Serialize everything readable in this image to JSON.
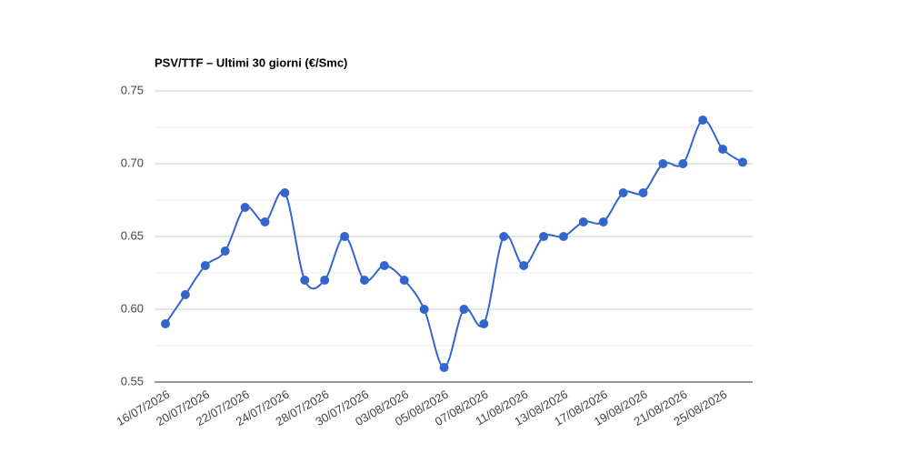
{
  "chart_data": {
    "type": "line",
    "title": "PSV/TTF – Ultimi 30 giorni (€/Smc)",
    "categories": [
      "16/07/2026",
      null,
      "20/07/2026",
      null,
      "22/07/2026",
      null,
      "24/07/2026",
      null,
      "28/07/2026",
      null,
      "30/07/2026",
      null,
      "03/08/2026",
      null,
      "05/08/2026",
      null,
      "07/08/2026",
      null,
      "11/08/2026",
      null,
      "13/08/2026",
      null,
      "17/08/2026",
      null,
      "19/08/2026",
      null,
      "21/08/2026",
      null,
      "25/08/2026",
      null
    ],
    "values": [
      0.59,
      0.61,
      0.63,
      0.64,
      0.67,
      0.66,
      0.68,
      0.62,
      0.62,
      0.65,
      0.62,
      0.63,
      0.62,
      0.6,
      0.56,
      0.6,
      0.59,
      0.65,
      0.63,
      0.65,
      0.65,
      0.66,
      0.66,
      0.68,
      0.68,
      0.7,
      0.7,
      0.73,
      0.71,
      0.701
    ],
    "color": "#3366cc",
    "ylim": [
      0.55,
      0.75
    ],
    "yticks": [
      0.55,
      {
        "value": 0.6,
        "label": "0.60"
      },
      0.65,
      {
        "value": 0.7,
        "label": "0.70"
      },
      0.75
    ],
    "minor_yticks": [
      0.575,
      0.625,
      0.675,
      0.725
    ],
    "grid": true
  }
}
